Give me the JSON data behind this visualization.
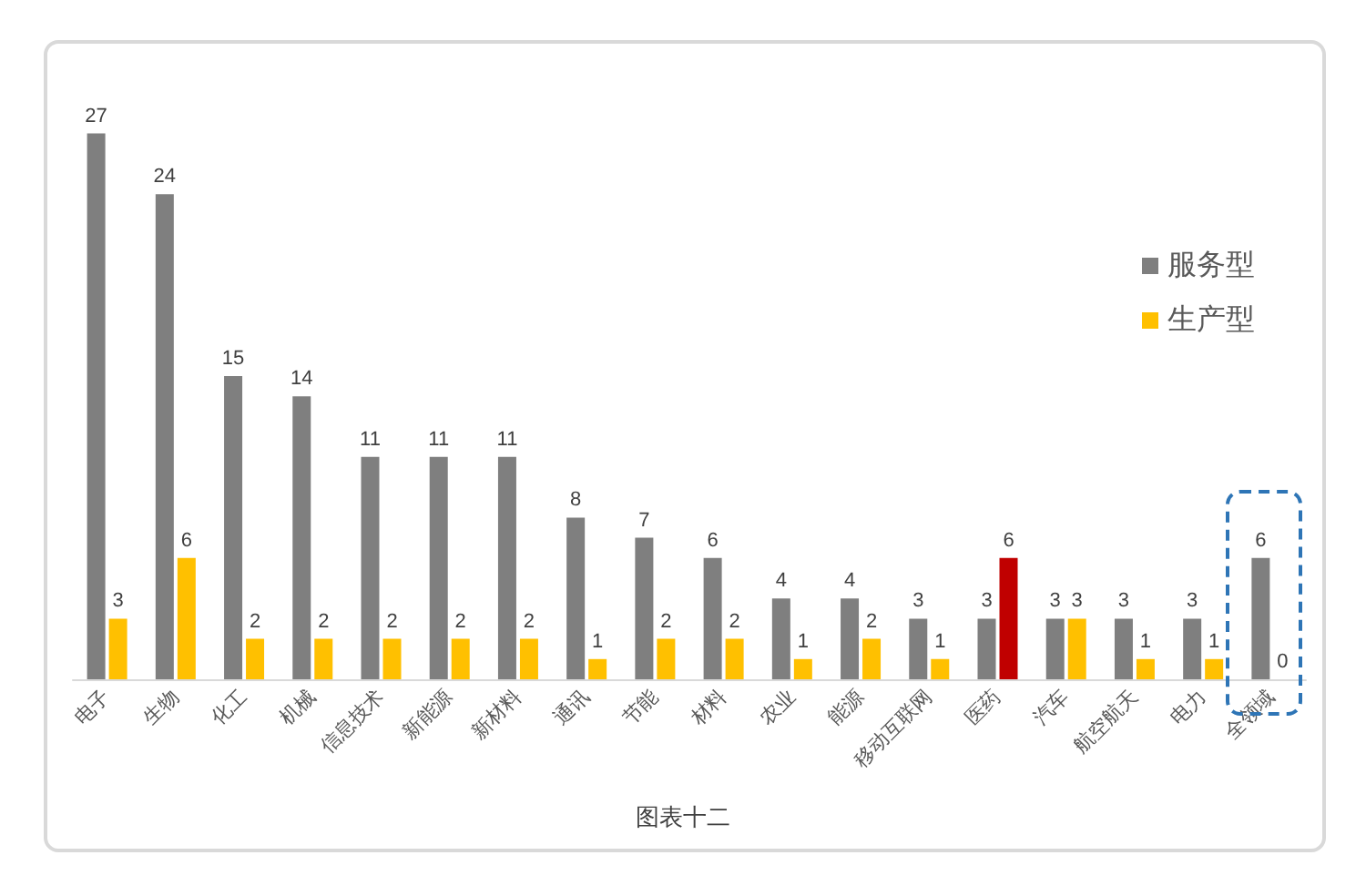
{
  "chart_data": {
    "type": "bar",
    "title": "图表十二",
    "categories": [
      "电子",
      "生物",
      "化工",
      "机械",
      "信息技术",
      "新能源",
      "新材料",
      "通讯",
      "节能",
      "材料",
      "农业",
      "能源",
      "移动互联网",
      "医药",
      "汽车",
      "航空航天",
      "电力",
      "全领域"
    ],
    "series": [
      {
        "name": "服务型",
        "color": "#7f7f7f",
        "values": [
          27,
          24,
          15,
          14,
          11,
          11,
          11,
          8,
          7,
          6,
          4,
          4,
          3,
          3,
          3,
          3,
          3,
          6
        ]
      },
      {
        "name": "生产型",
        "color": "#ffc000",
        "colors": [
          "#ffc000",
          "#ffc000",
          "#ffc000",
          "#ffc000",
          "#ffc000",
          "#ffc000",
          "#ffc000",
          "#ffc000",
          "#ffc000",
          "#ffc000",
          "#ffc000",
          "#ffc000",
          "#ffc000",
          "#c00000",
          "#ffc000",
          "#ffc000",
          "#ffc000",
          "#ffc000"
        ],
        "values": [
          3,
          6,
          2,
          2,
          2,
          2,
          2,
          1,
          2,
          2,
          1,
          2,
          1,
          6,
          3,
          1,
          1,
          0
        ]
      }
    ],
    "data_labels": true,
    "legend": "top right"
  }
}
